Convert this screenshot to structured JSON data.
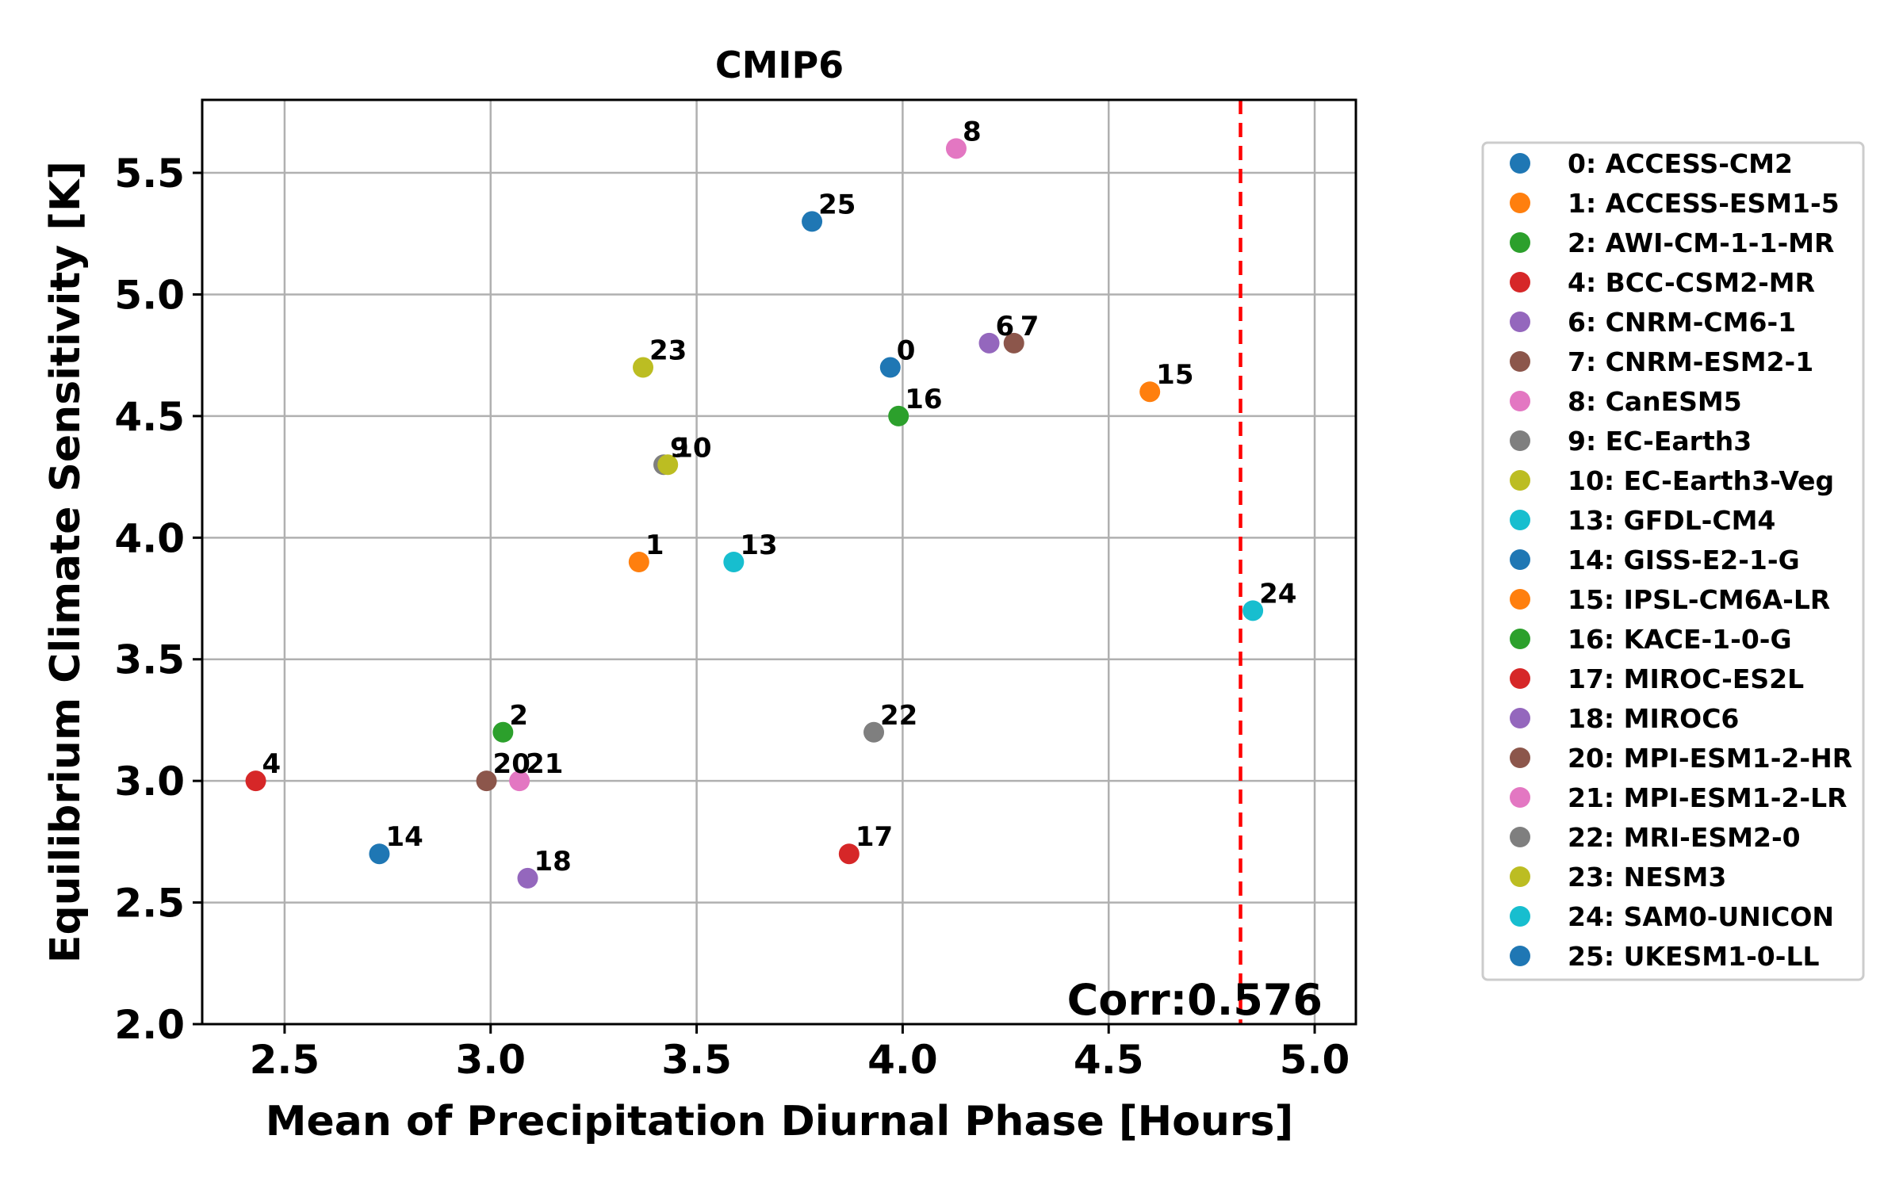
{
  "chart_data": {
    "type": "scatter",
    "title": "CMIP6",
    "xlabel": "Mean of Precipitation Diurnal Phase [Hours]",
    "ylabel": "Equilibrium Climate Sensitivity [K]",
    "xlim": [
      2.3,
      5.1
    ],
    "ylim": [
      2.0,
      5.8
    ],
    "xticks": [
      "2.5",
      "3.0",
      "3.5",
      "4.0",
      "4.5",
      "5.0"
    ],
    "yticks": [
      "2.0",
      "2.5",
      "3.0",
      "3.5",
      "4.0",
      "4.5",
      "5.0",
      "5.5"
    ],
    "grid": true,
    "legend_position": "outside-right",
    "reference_line": {
      "axis": "x",
      "value": 4.82,
      "style": "dashed",
      "color": "#ff0000"
    },
    "annotation": "Corr:0.576",
    "points": [
      {
        "id": "0",
        "legend": "0: ACCESS-CM2",
        "x": 3.97,
        "y": 4.7,
        "color": "#1f77b4"
      },
      {
        "id": "1",
        "legend": "1: ACCESS-ESM1-5",
        "x": 3.36,
        "y": 3.9,
        "color": "#ff7f0e"
      },
      {
        "id": "2",
        "legend": "2: AWI-CM-1-1-MR",
        "x": 3.03,
        "y": 3.2,
        "color": "#2ca02c"
      },
      {
        "id": "4",
        "legend": "4: BCC-CSM2-MR",
        "x": 2.43,
        "y": 3.0,
        "color": "#d62728"
      },
      {
        "id": "6",
        "legend": "6: CNRM-CM6-1",
        "x": 4.21,
        "y": 4.8,
        "color": "#9467bd"
      },
      {
        "id": "7",
        "legend": "7: CNRM-ESM2-1",
        "x": 4.27,
        "y": 4.8,
        "color": "#8c564b"
      },
      {
        "id": "8",
        "legend": "8: CanESM5",
        "x": 4.13,
        "y": 5.6,
        "color": "#e377c2"
      },
      {
        "id": "9",
        "legend": "9: EC-Earth3",
        "x": 3.42,
        "y": 4.3,
        "color": "#7f7f7f"
      },
      {
        "id": "10",
        "legend": "10: EC-Earth3-Veg",
        "x": 3.43,
        "y": 4.3,
        "color": "#bcbd22"
      },
      {
        "id": "13",
        "legend": "13: GFDL-CM4",
        "x": 3.59,
        "y": 3.9,
        "color": "#17becf"
      },
      {
        "id": "14",
        "legend": "14: GISS-E2-1-G",
        "x": 2.73,
        "y": 2.7,
        "color": "#1f77b4"
      },
      {
        "id": "15",
        "legend": "15: IPSL-CM6A-LR",
        "x": 4.6,
        "y": 4.6,
        "color": "#ff7f0e"
      },
      {
        "id": "16",
        "legend": "16: KACE-1-0-G",
        "x": 3.99,
        "y": 4.5,
        "color": "#2ca02c"
      },
      {
        "id": "17",
        "legend": "17: MIROC-ES2L",
        "x": 3.87,
        "y": 2.7,
        "color": "#d62728"
      },
      {
        "id": "18",
        "legend": "18: MIROC6",
        "x": 3.09,
        "y": 2.6,
        "color": "#9467bd"
      },
      {
        "id": "20",
        "legend": "20: MPI-ESM1-2-HR",
        "x": 2.99,
        "y": 3.0,
        "color": "#8c564b"
      },
      {
        "id": "21",
        "legend": "21: MPI-ESM1-2-LR",
        "x": 3.07,
        "y": 3.0,
        "color": "#e377c2"
      },
      {
        "id": "22",
        "legend": "22: MRI-ESM2-0",
        "x": 3.93,
        "y": 3.2,
        "color": "#7f7f7f"
      },
      {
        "id": "23",
        "legend": "23: NESM3",
        "x": 3.37,
        "y": 4.7,
        "color": "#bcbd22"
      },
      {
        "id": "24",
        "legend": "24: SAM0-UNICON",
        "x": 4.85,
        "y": 3.7,
        "color": "#17becf"
      },
      {
        "id": "25",
        "legend": "25: UKESM1-0-LL",
        "x": 3.78,
        "y": 5.3,
        "color": "#1f77b4"
      }
    ]
  }
}
